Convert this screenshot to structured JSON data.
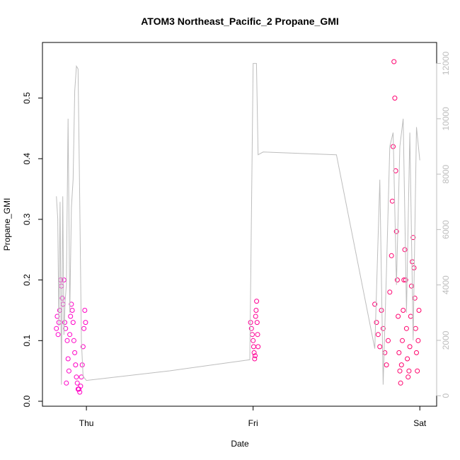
{
  "chart_data": {
    "type": "scatter",
    "title": "ATOM3 Northeast_Pacific_2 Propane_GMI",
    "xlabel": "Date",
    "ylabel": "Propane_GMI",
    "x_ticks": [
      "Thu",
      "Fri",
      "Sat"
    ],
    "x_tick_values": [
      0,
      1,
      2
    ],
    "xlim": [
      -0.2,
      2.05
    ],
    "ylim": [
      0,
      0.58
    ],
    "y_ticks": [
      "0.0",
      "0.1",
      "0.2",
      "0.3",
      "0.4",
      "0.5"
    ],
    "y_tick_values": [
      0,
      0.1,
      0.2,
      0.3,
      0.4,
      0.5
    ],
    "y2lim": [
      -200,
      12500
    ],
    "y2_ticks": [
      "0",
      "2000",
      "4000",
      "6000",
      "8000",
      "10000",
      "12000"
    ],
    "y2_tick_values": [
      0,
      2000,
      4000,
      6000,
      8000,
      10000,
      12000
    ],
    "colors": {
      "points_early": "#ff00cc",
      "points_late": "#ff0066",
      "secondary_line": "#bdbdbd",
      "frame": "#000000"
    },
    "grid": false,
    "series": [
      {
        "marker": "open-circle",
        "y_axis": "left",
        "color_gradient": [
          "#ff00cc",
          "#ff0066"
        ],
        "segments": [
          {
            "x_start": -0.18,
            "x_end": 0.0,
            "points": [
              [
                -0.18,
                0.12
              ],
              [
                -0.175,
                0.14
              ],
              [
                -0.17,
                0.11
              ],
              [
                -0.165,
                0.13
              ],
              [
                -0.16,
                0.15
              ],
              [
                -0.155,
                0.2
              ],
              [
                -0.15,
                0.19
              ],
              [
                -0.145,
                0.17
              ],
              [
                -0.14,
                0.16
              ],
              [
                -0.135,
                0.2
              ],
              [
                -0.13,
                0.13
              ],
              [
                -0.125,
                0.12
              ],
              [
                -0.12,
                0.03
              ],
              [
                -0.115,
                0.1
              ],
              [
                -0.11,
                0.07
              ],
              [
                -0.105,
                0.05
              ],
              [
                -0.1,
                0.11
              ],
              [
                -0.095,
                0.14
              ],
              [
                -0.09,
                0.16
              ],
              [
                -0.085,
                0.15
              ],
              [
                -0.08,
                0.13
              ],
              [
                -0.075,
                0.1
              ],
              [
                -0.07,
                0.08
              ],
              [
                -0.065,
                0.06
              ],
              [
                -0.06,
                0.04
              ],
              [
                -0.055,
                0.03
              ],
              [
                -0.05,
                0.02
              ],
              [
                -0.045,
                0.02
              ],
              [
                -0.04,
                0.015
              ],
              [
                -0.035,
                0.025
              ],
              [
                -0.03,
                0.04
              ],
              [
                -0.025,
                0.06
              ],
              [
                -0.02,
                0.09
              ],
              [
                -0.015,
                0.12
              ],
              [
                -0.01,
                0.15
              ],
              [
                -0.005,
                0.13
              ]
            ]
          },
          {
            "x_start": 0.98,
            "x_end": 1.04,
            "points": [
              [
                0.985,
                0.13
              ],
              [
                0.99,
                0.12
              ],
              [
                0.995,
                0.11
              ],
              [
                1.0,
                0.1
              ],
              [
                1.003,
                0.09
              ],
              [
                1.006,
                0.08
              ],
              [
                1.009,
                0.07
              ],
              [
                1.012,
                0.075
              ],
              [
                1.015,
                0.14
              ],
              [
                1.018,
                0.15
              ],
              [
                1.021,
                0.165
              ],
              [
                1.024,
                0.13
              ],
              [
                1.027,
                0.11
              ],
              [
                1.03,
                0.09
              ]
            ]
          },
          {
            "x_start": 1.73,
            "x_end": 2.0,
            "points": [
              [
                1.73,
                0.16
              ],
              [
                1.74,
                0.13
              ],
              [
                1.75,
                0.11
              ],
              [
                1.76,
                0.09
              ],
              [
                1.77,
                0.15
              ],
              [
                1.78,
                0.12
              ],
              [
                1.79,
                0.08
              ],
              [
                1.8,
                0.06
              ],
              [
                1.81,
                0.1
              ],
              [
                1.82,
                0.18
              ],
              [
                1.83,
                0.24
              ],
              [
                1.835,
                0.33
              ],
              [
                1.84,
                0.42
              ],
              [
                1.845,
                0.56
              ],
              [
                1.85,
                0.5
              ],
              [
                1.855,
                0.38
              ],
              [
                1.86,
                0.28
              ],
              [
                1.865,
                0.2
              ],
              [
                1.87,
                0.14
              ],
              [
                1.875,
                0.08
              ],
              [
                1.88,
                0.05
              ],
              [
                1.885,
                0.03
              ],
              [
                1.89,
                0.06
              ],
              [
                1.895,
                0.1
              ],
              [
                1.9,
                0.15
              ],
              [
                1.905,
                0.2
              ],
              [
                1.91,
                0.25
              ],
              [
                1.915,
                0.2
              ],
              [
                1.92,
                0.12
              ],
              [
                1.925,
                0.07
              ],
              [
                1.93,
                0.04
              ],
              [
                1.935,
                0.05
              ],
              [
                1.94,
                0.09
              ],
              [
                1.945,
                0.14
              ],
              [
                1.95,
                0.19
              ],
              [
                1.955,
                0.23
              ],
              [
                1.96,
                0.27
              ],
              [
                1.965,
                0.22
              ],
              [
                1.97,
                0.17
              ],
              [
                1.975,
                0.12
              ],
              [
                1.98,
                0.08
              ],
              [
                1.985,
                0.05
              ],
              [
                1.99,
                0.1
              ],
              [
                1.995,
                0.15
              ]
            ]
          }
        ]
      },
      {
        "type": "line",
        "y_axis": "right",
        "color": "#bdbdbd",
        "points": [
          [
            -0.18,
            7200
          ],
          [
            -0.172,
            6400
          ],
          [
            -0.165,
            2500
          ],
          [
            -0.158,
            7000
          ],
          [
            -0.15,
            400
          ],
          [
            -0.142,
            7200
          ],
          [
            -0.135,
            2200
          ],
          [
            -0.128,
            3400
          ],
          [
            -0.12,
            4000
          ],
          [
            -0.11,
            10000
          ],
          [
            -0.1,
            3000
          ],
          [
            -0.09,
            6800
          ],
          [
            -0.08,
            7800
          ],
          [
            -0.07,
            11000
          ],
          [
            -0.06,
            11900
          ],
          [
            -0.05,
            11800
          ],
          [
            -0.04,
            7000
          ],
          [
            -0.03,
            2000
          ],
          [
            -0.02,
            700
          ],
          [
            0.0,
            550
          ],
          [
            0.5,
            900
          ],
          [
            0.98,
            1300
          ],
          [
            1.0,
            12000
          ],
          [
            1.02,
            12000
          ],
          [
            1.03,
            8700
          ],
          [
            1.06,
            8800
          ],
          [
            1.5,
            8700
          ],
          [
            1.73,
            1700
          ],
          [
            1.76,
            7800
          ],
          [
            1.78,
            400
          ],
          [
            1.8,
            4500
          ],
          [
            1.82,
            9000
          ],
          [
            1.84,
            9500
          ],
          [
            1.86,
            4000
          ],
          [
            1.88,
            9000
          ],
          [
            1.9,
            10000
          ],
          [
            1.92,
            3000
          ],
          [
            1.94,
            9500
          ],
          [
            1.96,
            2000
          ],
          [
            1.98,
            9700
          ],
          [
            2.0,
            8500
          ]
        ]
      }
    ]
  }
}
